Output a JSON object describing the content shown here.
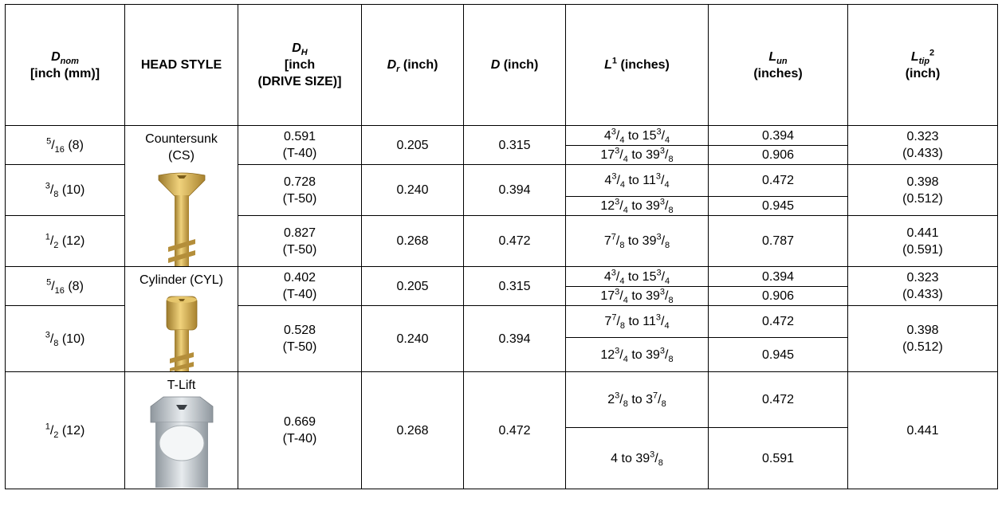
{
  "header": {
    "dnom": {
      "main": "D",
      "sub": "nom",
      "rest": "[inch (mm)]"
    },
    "head_style": "HEAD STYLE",
    "dh": {
      "main": "D",
      "sub": "H",
      "line2": "[inch",
      "line3": "(DRIVE SIZE)]"
    },
    "dr": {
      "main": "D",
      "sub": "r",
      "rest": " (inch)"
    },
    "d": {
      "main": "D",
      "rest": " (inch)"
    },
    "l": {
      "main": "L",
      "sup": "1",
      "rest": " (inches)"
    },
    "lun": {
      "main": "L",
      "sub": "un",
      "line2": "(inches)"
    },
    "ltip": {
      "main": "L",
      "sub": "tip",
      "sup": "2",
      "line2": "(inch)"
    }
  },
  "head_styles": {
    "countersunk": {
      "line1": "Countersunk",
      "line2": "(CS)"
    },
    "cylinder": "Cylinder (CYL)",
    "tlift": "T-Lift"
  },
  "rows": {
    "r1": {
      "dnom_num": "5",
      "dnom_den": "16",
      "dnom_mm": " (8)",
      "dh_val": "0.591",
      "dh_drive": "(T-40)",
      "dr": "0.205",
      "d": "0.315",
      "l1": {
        "a": "4",
        "an": "3",
        "ad": "4",
        "b": "15",
        "bn": "3",
        "bd": "4"
      },
      "lun1": "0.394",
      "l2": {
        "a": "17",
        "an": "3",
        "ad": "4",
        "b": "39",
        "bn": "3",
        "bd": "8"
      },
      "lun2": "0.906",
      "ltip1": "0.323",
      "ltip2": "(0.433)"
    },
    "r2": {
      "dnom_num": "3",
      "dnom_den": "8",
      "dnom_mm": " (10)",
      "dh_val": "0.728",
      "dh_drive": "(T-50)",
      "dr": "0.240",
      "d": "0.394",
      "l1": {
        "a": "4",
        "an": "3",
        "ad": "4",
        "b": "11",
        "bn": "3",
        "bd": "4"
      },
      "lun1": "0.472",
      "l2": {
        "a": "12",
        "an": "3",
        "ad": "4",
        "b": "39",
        "bn": "3",
        "bd": "8"
      },
      "lun2": "0.945",
      "ltip1": "0.398",
      "ltip2": "(0.512)"
    },
    "r3": {
      "dnom_num": "1",
      "dnom_den": "2",
      "dnom_mm": " (12)",
      "dh_val": "0.827",
      "dh_drive": "(T-50)",
      "dr": "0.268",
      "d": "0.472",
      "l1": {
        "a": "7",
        "an": "7",
        "ad": "8",
        "b": "39",
        "bn": "3",
        "bd": "8"
      },
      "lun1": "0.787",
      "ltip1": "0.441",
      "ltip2": "(0.591)"
    },
    "r4": {
      "dnom_num": "5",
      "dnom_den": "16",
      "dnom_mm": " (8)",
      "dh_val": "0.402",
      "dh_drive": "(T-40)",
      "dr": "0.205",
      "d": "0.315",
      "l1": {
        "a": "4",
        "an": "3",
        "ad": "4",
        "b": "15",
        "bn": "3",
        "bd": "4"
      },
      "lun1": "0.394",
      "l2": {
        "a": "17",
        "an": "3",
        "ad": "4",
        "b": "39",
        "bn": "3",
        "bd": "8"
      },
      "lun2": "0.906",
      "ltip1": "0.323",
      "ltip2": "(0.433)"
    },
    "r5": {
      "dnom_num": "3",
      "dnom_den": "8",
      "dnom_mm": " (10)",
      "dh_val": "0.528",
      "dh_drive": "(T-50)",
      "dr": "0.240",
      "d": "0.394",
      "l1": {
        "a": "7",
        "an": "7",
        "ad": "8",
        "b": "11",
        "bn": "3",
        "bd": "4"
      },
      "lun1": "0.472",
      "l2": {
        "a": "12",
        "an": "3",
        "ad": "4",
        "b": "39",
        "bn": "3",
        "bd": "8"
      },
      "lun2": "0.945",
      "ltip1": "0.398",
      "ltip2": "(0.512)"
    },
    "r6": {
      "dnom_num": "1",
      "dnom_den": "2",
      "dnom_mm": " (12)",
      "dh_val": "0.669",
      "dh_drive": "(T-40)",
      "dr": "0.268",
      "d": "0.472",
      "l1": {
        "a": "2",
        "an": "3",
        "ad": "8",
        "b": "3",
        "bn": "7",
        "bd": "8"
      },
      "lun1": "0.472",
      "l2": {
        "plain": "4 to ",
        "b": "39",
        "bn": "3",
        "bd": "8"
      },
      "lun2": "0.591",
      "ltip1": "0.441"
    }
  },
  "common": {
    "to": " to "
  },
  "colors": {
    "gold": "#c9a24a",
    "silver": "#b8bec4",
    "border": "#000000"
  }
}
